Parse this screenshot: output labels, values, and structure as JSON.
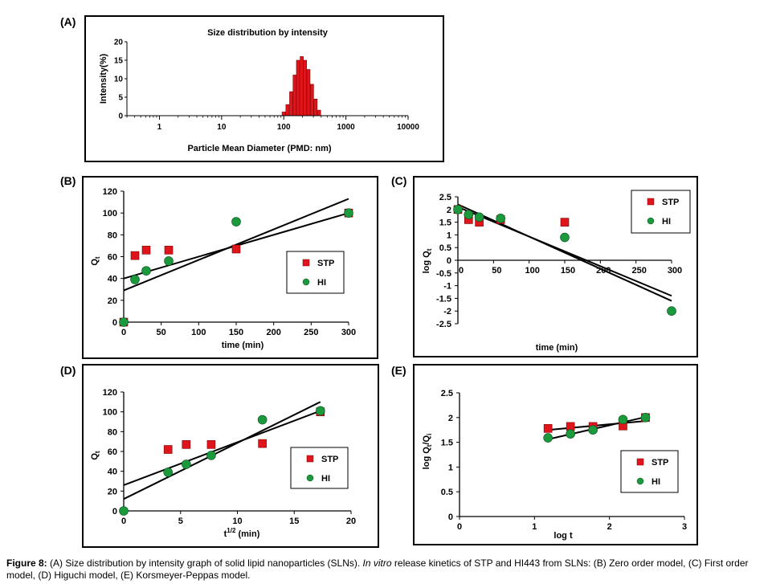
{
  "caption": {
    "label": "Figure 8:",
    "part1": "(A) Size distribution by intensity graph of solid lipid nanoparticles (SLNs).",
    "italic": "In vitro",
    "part2": "release kinetics of STP and HI443 from SLNs: (B) Zero order model, (C) First order model, (D) Higuchi model, (E) Korsmeyer-Peppas model."
  },
  "colors": {
    "stp": "#e0141b",
    "hi": "#1a9a3c",
    "line": "#000000"
  },
  "chart_data": [
    {
      "id": "A",
      "panel_label": "(A)",
      "type": "bar",
      "title": "Size distribution by intensity",
      "xlabel": "Particle Mean Diameter (PMD: nm)",
      "ylabel": "Intensity(%)",
      "xscale": "log",
      "xlim": [
        0.3,
        10000
      ],
      "ylim": [
        0,
        20
      ],
      "xticks": [
        1,
        10,
        100,
        1000,
        10000
      ],
      "xtick_labels": [
        "1",
        "10",
        "100",
        "1000",
        "10000"
      ],
      "yticks": [
        0,
        5,
        10,
        15,
        20
      ],
      "x": [
        100,
        115,
        132,
        150,
        170,
        195,
        220,
        250,
        285,
        325,
        370
      ],
      "values": [
        1,
        3,
        6.5,
        11,
        15,
        16,
        15,
        12.5,
        8.5,
        4.5,
        1.5
      ]
    },
    {
      "id": "B",
      "panel_label": "(B)",
      "type": "scatter",
      "xlabel": "time (min)",
      "ylabel": "Qt",
      "ylabel_main": "Q",
      "ylabel_sub": "t",
      "xlim": [
        0,
        300
      ],
      "ylim": [
        0,
        120
      ],
      "xticks": [
        0,
        50,
        100,
        150,
        200,
        250,
        300
      ],
      "yticks": [
        0,
        20,
        40,
        60,
        80,
        100,
        120
      ],
      "series": [
        {
          "name": "STP",
          "marker": "square",
          "x": [
            0,
            15,
            30,
            60,
            150,
            300
          ],
          "y": [
            0,
            61,
            66,
            66,
            67,
            100
          ],
          "fit": [
            [
              0,
              40
            ],
            [
              300,
              100
            ]
          ]
        },
        {
          "name": "HI",
          "marker": "circle",
          "x": [
            0,
            15,
            30,
            60,
            150,
            300
          ],
          "y": [
            0,
            39,
            47,
            56,
            92,
            100
          ],
          "fit": [
            [
              0,
              29
            ],
            [
              300,
              113
            ]
          ]
        }
      ]
    },
    {
      "id": "C",
      "panel_label": "(C)",
      "type": "scatter",
      "xlabel": "time (min)",
      "ylabel": "log Qt",
      "ylabel_main": "log Q",
      "ylabel_sub": "t",
      "xlim": [
        0,
        300
      ],
      "ylim": [
        -2.5,
        2.5
      ],
      "xticks": [
        0,
        50,
        100,
        150,
        200,
        250,
        300
      ],
      "xtick_labels": [
        "0",
        "50",
        "100",
        "150",
        "200",
        "250",
        "300"
      ],
      "yticks": [
        -2.5,
        -2,
        -1.5,
        -1,
        -0.5,
        0,
        0.5,
        1,
        1.5,
        2,
        2.5
      ],
      "series": [
        {
          "name": "STP",
          "marker": "square",
          "x": [
            0,
            15,
            30,
            60,
            150
          ],
          "y": [
            2,
            1.6,
            1.5,
            1.6,
            1.5
          ],
          "fit": [
            [
              0,
              2.1
            ],
            [
              300,
              -1.4
            ]
          ]
        },
        {
          "name": "HI",
          "marker": "circle",
          "x": [
            0,
            15,
            30,
            60,
            150,
            300
          ],
          "y": [
            2,
            1.8,
            1.7,
            1.65,
            0.9,
            -2
          ],
          "fit": [
            [
              0,
              2.2
            ],
            [
              300,
              -1.6
            ]
          ]
        }
      ]
    },
    {
      "id": "D",
      "panel_label": "(D)",
      "type": "scatter",
      "xlabel": "t1/2 (min)",
      "xlabel_main": "t",
      "xlabel_sup": "1/2",
      "xlabel_rest": " (min)",
      "ylabel": "Qt",
      "ylabel_main": "Q",
      "ylabel_sub": "t",
      "xlim": [
        0,
        20
      ],
      "ylim": [
        0,
        120
      ],
      "xticks": [
        0,
        5,
        10,
        15,
        20
      ],
      "yticks": [
        0,
        20,
        40,
        60,
        80,
        100,
        120
      ],
      "series": [
        {
          "name": "STP",
          "marker": "square",
          "x": [
            3.9,
            5.5,
            7.7,
            12.2,
            17.3
          ],
          "y": [
            62,
            67,
            67,
            68,
            100
          ],
          "fit": [
            [
              0,
              26
            ],
            [
              17.3,
              101
            ]
          ]
        },
        {
          "name": "HI",
          "marker": "circle",
          "x": [
            0,
            3.9,
            5.5,
            7.7,
            12.2,
            17.3
          ],
          "y": [
            0,
            39,
            47,
            56,
            92,
            101
          ],
          "fit": [
            [
              0,
              12
            ],
            [
              17.3,
              110
            ]
          ]
        }
      ]
    },
    {
      "id": "E",
      "panel_label": "(E)",
      "type": "scatter",
      "xlabel": "log t",
      "ylabel": "log Qt/Qi",
      "ylabel_main": "log Q",
      "ylabel_sub1": "t",
      "ylabel_mid": "/Q",
      "ylabel_sub2": "i",
      "xlim": [
        0,
        3
      ],
      "ylim": [
        0,
        2.5
      ],
      "xticks": [
        0,
        1,
        2,
        3
      ],
      "yticks": [
        0,
        0.5,
        1,
        1.5,
        2,
        2.5
      ],
      "ytick_labels": [
        "0",
        "0.5",
        "1",
        "1.5",
        "2",
        "2.5"
      ],
      "series": [
        {
          "name": "STP",
          "marker": "square",
          "x": [
            1.18,
            1.48,
            1.78,
            2.18,
            2.48
          ],
          "y": [
            1.78,
            1.82,
            1.82,
            1.83,
            2.0
          ],
          "fit": [
            [
              1.18,
              1.75
            ],
            [
              2.48,
              1.93
            ]
          ]
        },
        {
          "name": "HI",
          "marker": "circle",
          "x": [
            1.18,
            1.48,
            1.78,
            2.18,
            2.48
          ],
          "y": [
            1.59,
            1.67,
            1.75,
            1.96,
            2.0
          ],
          "fit": [
            [
              1.18,
              1.56
            ],
            [
              2.48,
              2.01
            ]
          ]
        }
      ]
    }
  ]
}
